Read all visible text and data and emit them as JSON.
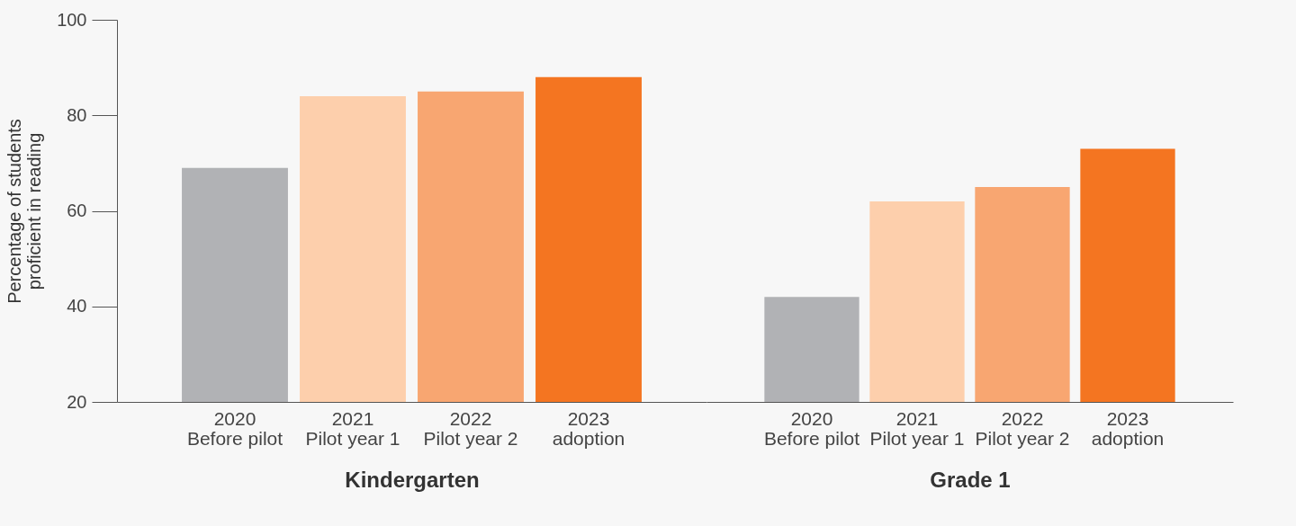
{
  "chart_data": [
    {
      "type": "bar",
      "xlabel": "Kindergarten",
      "ylabel": "Percentage of students\nproficient in reading",
      "categories": [
        "2020\nBefore pilot",
        "2021\nPilot year 1",
        "2022\nPilot year 2",
        "2023\nadoption"
      ],
      "values": [
        69,
        84,
        85,
        88
      ],
      "colors": [
        "#b1b2b5",
        "#fdcfac",
        "#f8a671",
        "#f47521"
      ],
      "ylim": [
        20,
        100
      ],
      "yticks": [
        20,
        40,
        60,
        80,
        100
      ],
      "grid": false
    },
    {
      "type": "bar",
      "xlabel": "Grade 1",
      "categories": [
        "2020\nBefore pilot",
        "2021\nPilot year 1",
        "2022\nPilot year 2",
        "2023\nadoption"
      ],
      "values": [
        42,
        62,
        65,
        73
      ],
      "colors": [
        "#b1b2b5",
        "#fdcfac",
        "#f8a671",
        "#f47521"
      ],
      "ylim": [
        20,
        100
      ],
      "yticks": [
        20,
        40,
        60,
        80,
        100
      ],
      "tick_labels": "x",
      "grid": false
    }
  ]
}
